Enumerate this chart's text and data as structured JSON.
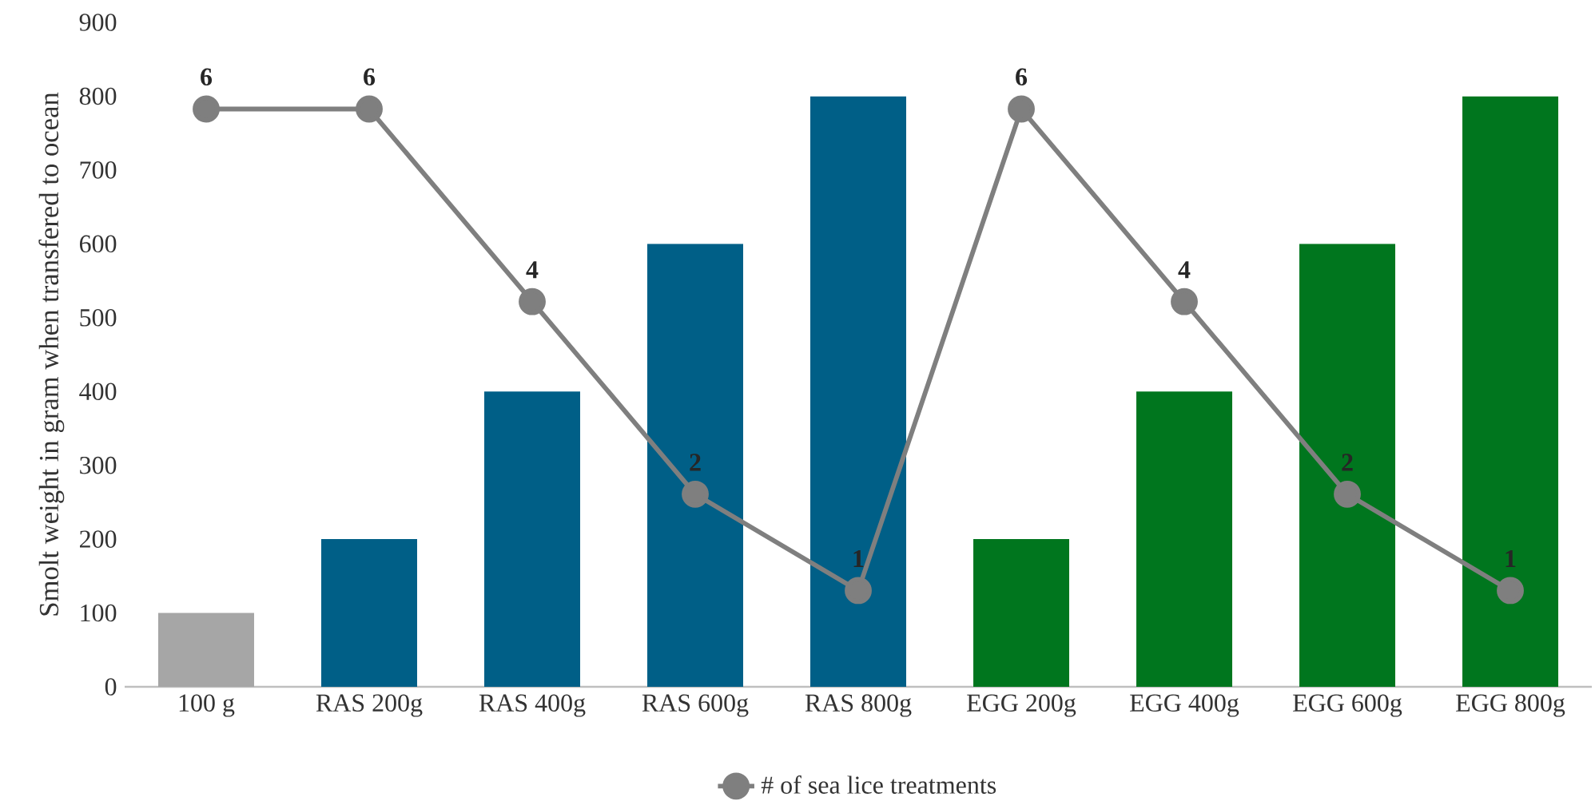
{
  "chart_data": {
    "type": "bar",
    "ylabel": "Smolt weight in gram when transfered to ocean",
    "categories": [
      "100 g",
      "RAS 200g",
      "RAS 400g",
      "RAS 600g",
      "RAS 800g",
      "EGG 200g",
      "EGG 400g",
      "EGG 600g",
      "EGG 800g"
    ],
    "series": [
      {
        "colors": [
          "#a6a6a6",
          "#005f87",
          "#005f87",
          "#005f87",
          "#005f87",
          "#00761e",
          "#00761e",
          "#00761e",
          "#00761e"
        ],
        "values": [
          100,
          200,
          400,
          600,
          800,
          200,
          400,
          600,
          800
        ]
      },
      {
        "type": "line",
        "name": "# of sea lice treatments",
        "color": "#7f7f7f",
        "axis": "y2",
        "marker": "circle",
        "data_labels": true,
        "values": [
          6,
          6,
          4,
          2,
          1,
          6,
          4,
          2,
          1
        ]
      }
    ],
    "ylim": [
      0,
      900
    ],
    "yticks": [
      0,
      100,
      200,
      300,
      400,
      500,
      600,
      700,
      800,
      900
    ],
    "legend": "bottom"
  }
}
